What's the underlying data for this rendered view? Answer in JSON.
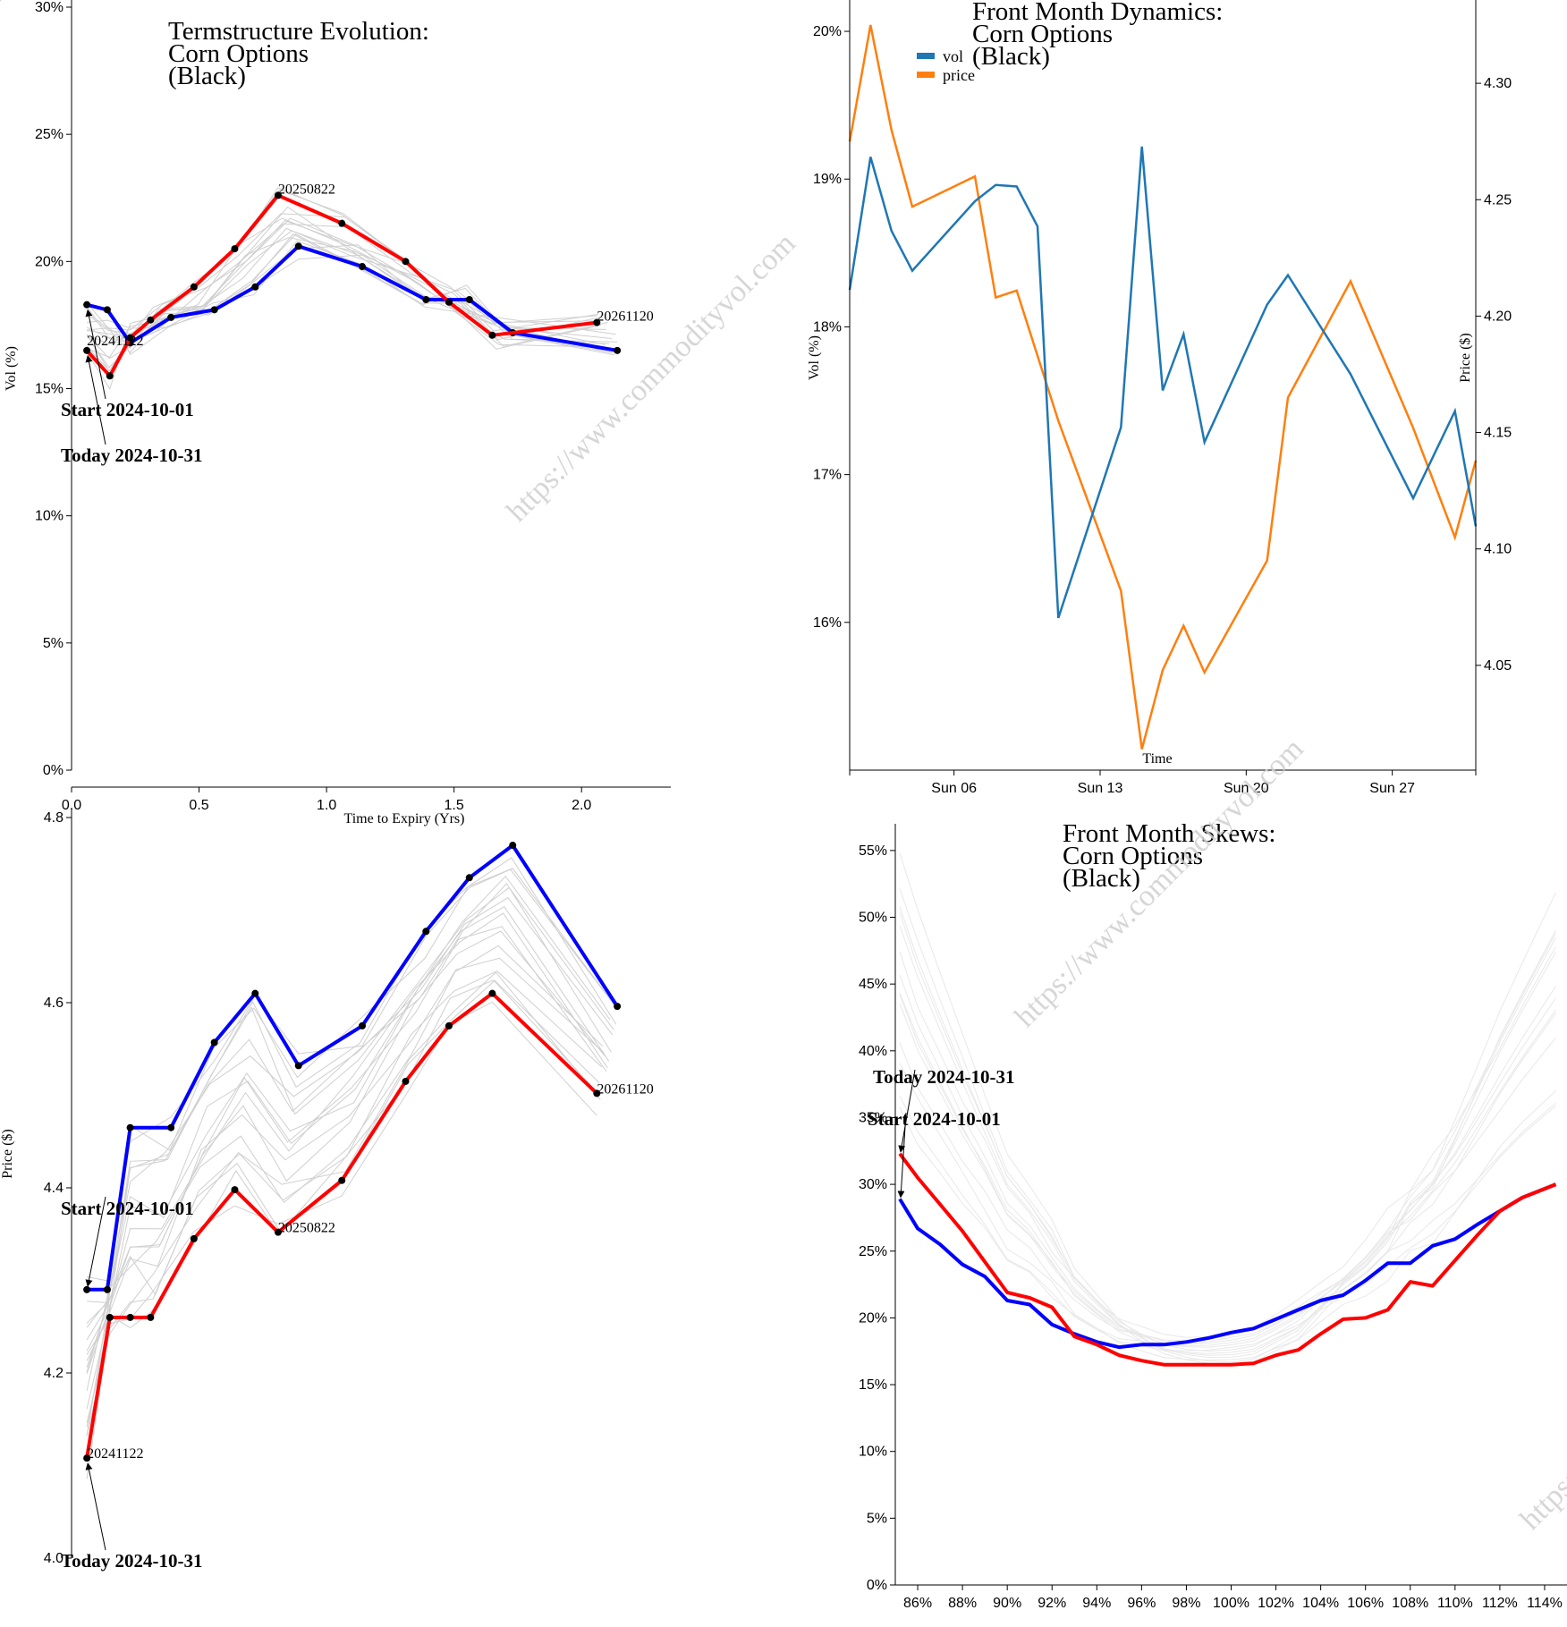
{
  "watermark": {
    "text": "https://www.commodityvol.com"
  },
  "colors": {
    "today": "#ff0000",
    "start": "#0000ff",
    "history": "#cfcfcf",
    "vol": "#1f77b4",
    "price": "#ff7f0e"
  },
  "chart_data": [
    {
      "id": "termstructure",
      "type": "line",
      "title": [
        "Termstructure Evolution:",
        "Corn Options",
        "(Black)"
      ],
      "xlabel": "Time to Expiry (Yrs)",
      "ylabel": "Vol (%)",
      "xlim": [
        0,
        2.35
      ],
      "ylim": [
        0,
        30
      ],
      "xticks": [
        0,
        0.5,
        1.0,
        1.5,
        2.0
      ],
      "xtick_labels": [
        "0.0",
        "0.5",
        "1.0",
        "1.5",
        "2.0"
      ],
      "yticks": [
        0,
        5,
        10,
        15,
        20,
        25,
        30
      ],
      "ytick_labels": [
        "0%",
        "5%",
        "10%",
        "15%",
        "20%",
        "25%",
        "30%"
      ],
      "series": [
        {
          "name": "Today 2024-10-31",
          "x": [
            0.06,
            0.15,
            0.23,
            0.31,
            0.48,
            0.64,
            0.81,
            1.06,
            1.31,
            1.48,
            1.65,
            2.06
          ],
          "values": [
            16.5,
            15.5,
            17.0,
            17.7,
            19.0,
            20.5,
            22.6,
            21.5,
            20.0,
            18.4,
            17.1,
            17.6
          ]
        },
        {
          "name": "Start 2024-10-01",
          "x": [
            0.06,
            0.14,
            0.23,
            0.39,
            0.56,
            0.72,
            0.89,
            1.14,
            1.39,
            1.56,
            1.73,
            2.14
          ],
          "values": [
            18.3,
            18.1,
            16.8,
            17.8,
            18.1,
            19.0,
            20.6,
            19.8,
            18.5,
            18.5,
            17.2,
            16.5
          ]
        }
      ],
      "point_labels": [
        {
          "text": "20241122",
          "x": 0.06,
          "y": 16.5
        },
        {
          "text": "20250822",
          "x": 0.81,
          "y": 22.6
        },
        {
          "text": "20261120",
          "x": 2.06,
          "y": 17.6
        }
      ],
      "annotations": [
        "Start 2024-10-01",
        "Today 2024-10-31"
      ]
    },
    {
      "id": "dynamics",
      "type": "line",
      "title": [
        "Front Month Dynamics:",
        "Corn Options",
        "(Black)"
      ],
      "xlabel": "Time",
      "ylabel": "Vol (%)",
      "ylabel2": "Price ($)",
      "xlim": [
        1,
        31
      ],
      "ylim": [
        15,
        20.2
      ],
      "ylim2": [
        4.005,
        4.335
      ],
      "xticks": [
        6,
        13,
        20,
        27
      ],
      "xtick_labels": [
        "Sun 06",
        "Sun 13",
        "Sun 20",
        "Sun 27"
      ],
      "yticks": [
        16,
        17,
        18,
        19,
        20
      ],
      "ytick_labels": [
        "16%",
        "17%",
        "18%",
        "19%",
        "20%"
      ],
      "yticks2": [
        4.05,
        4.1,
        4.15,
        4.2,
        4.25,
        4.3
      ],
      "ytick_labels2": [
        "4.05",
        "4.10",
        "4.15",
        "4.20",
        "4.25",
        "4.30"
      ],
      "legend": [
        "vol",
        "price"
      ],
      "legend_position": "top-left",
      "series": [
        {
          "name": "vol",
          "axis": "left",
          "x": [
            1,
            2,
            3,
            4,
            7,
            8,
            9,
            10,
            11,
            14,
            15,
            16,
            17,
            18,
            21,
            22,
            25,
            28,
            30,
            31
          ],
          "values": [
            18.25,
            19.15,
            18.65,
            18.38,
            18.85,
            18.96,
            18.95,
            18.68,
            16.03,
            17.32,
            19.22,
            17.57,
            17.95,
            17.22,
            18.15,
            18.35,
            17.68,
            16.84,
            17.43,
            16.65
          ]
        },
        {
          "name": "price",
          "axis": "right",
          "x": [
            1,
            2,
            3,
            4,
            7,
            8,
            9,
            10,
            11,
            14,
            15,
            16,
            17,
            18,
            21,
            22,
            25,
            28,
            30,
            31
          ],
          "values": [
            4.275,
            4.325,
            4.28,
            4.247,
            4.26,
            4.208,
            4.211,
            4.183,
            4.155,
            4.082,
            4.014,
            4.048,
            4.067,
            4.047,
            4.095,
            4.165,
            4.215,
            4.152,
            4.105,
            4.138
          ]
        }
      ]
    },
    {
      "id": "prices",
      "type": "line",
      "title": [],
      "xlabel": "",
      "ylabel": "Price ($)",
      "xlim": [
        0,
        2.35
      ],
      "ylim": [
        4.0,
        4.8
      ],
      "yticks": [
        4.0,
        4.2,
        4.4,
        4.6,
        4.8
      ],
      "ytick_labels": [
        "4.0",
        "4.2",
        "4.4",
        "4.6",
        "4.8"
      ],
      "series": [
        {
          "name": "Today 2024-10-31",
          "x": [
            0.06,
            0.15,
            0.23,
            0.31,
            0.48,
            0.64,
            0.81,
            1.06,
            1.31,
            1.48,
            1.65,
            2.06
          ],
          "values": [
            4.108,
            4.26,
            4.26,
            4.26,
            4.345,
            4.398,
            4.352,
            4.408,
            4.515,
            4.575,
            4.61,
            4.502
          ]
        },
        {
          "name": "Start 2024-10-01",
          "x": [
            0.06,
            0.14,
            0.23,
            0.39,
            0.56,
            0.72,
            0.89,
            1.14,
            1.39,
            1.56,
            1.73,
            2.14
          ],
          "values": [
            4.29,
            4.29,
            4.465,
            4.465,
            4.557,
            4.61,
            4.532,
            4.575,
            4.677,
            4.735,
            4.77,
            4.596
          ]
        }
      ],
      "point_labels": [
        {
          "text": "20241122",
          "x": 0.06,
          "y": 4.108
        },
        {
          "text": "20250822",
          "x": 0.81,
          "y": 4.352
        },
        {
          "text": "20261120",
          "x": 2.06,
          "y": 4.502
        }
      ],
      "annotations": [
        "Start 2024-10-01",
        "Today 2024-10-31"
      ]
    },
    {
      "id": "skews",
      "type": "line",
      "title": [
        "Front Month Skews:",
        "Corn Options",
        "(Black)"
      ],
      "xlabel": "",
      "ylabel": "",
      "xlim": [
        85,
        115
      ],
      "ylim": [
        0,
        57
      ],
      "xticks": [
        86,
        88,
        90,
        92,
        94,
        96,
        98,
        100,
        102,
        104,
        106,
        108,
        110,
        112,
        114
      ],
      "xtick_labels": [
        "86%",
        "88%",
        "90%",
        "92%",
        "94%",
        "96%",
        "98%",
        "100%",
        "102%",
        "104%",
        "106%",
        "108%",
        "110%",
        "112%",
        "114%"
      ],
      "yticks": [
        0,
        5,
        10,
        15,
        20,
        25,
        30,
        35,
        40,
        45,
        50,
        55
      ],
      "ytick_labels": [
        "0%",
        "5%",
        "10%",
        "15%",
        "20%",
        "25%",
        "30%",
        "35%",
        "40%",
        "45%",
        "50%",
        "55%"
      ],
      "series": [
        {
          "name": "Today 2024-10-31",
          "x": [
            85.2,
            86,
            87,
            88,
            89,
            90,
            91,
            92,
            93,
            94,
            95,
            96,
            97,
            98,
            99,
            100,
            101,
            102,
            103,
            104,
            105,
            106,
            107,
            108,
            109,
            110,
            111,
            112,
            113,
            114.5
          ],
          "values": [
            32.3,
            30.5,
            28.5,
            26.5,
            24.2,
            21.9,
            21.5,
            20.8,
            18.6,
            18.0,
            17.2,
            16.8,
            16.5,
            16.5,
            16.5,
            16.5,
            16.6,
            17.2,
            17.6,
            18.8,
            19.9,
            20.0,
            20.6,
            22.7,
            22.4,
            24.3,
            26.2,
            28.0,
            29.0,
            30.0
          ]
        },
        {
          "name": "Start 2024-10-01",
          "x": [
            85.2,
            86,
            87,
            88,
            89,
            90,
            91,
            92,
            93,
            94,
            95,
            96,
            97,
            98,
            99,
            100,
            101,
            102,
            103,
            104,
            105,
            106,
            107,
            108,
            109,
            110,
            111,
            112,
            113,
            114.5
          ],
          "values": [
            28.9,
            26.7,
            25.5,
            24.0,
            23.1,
            21.3,
            21.0,
            19.5,
            18.8,
            18.2,
            17.8,
            18.0,
            18.0,
            18.2,
            18.5,
            18.9,
            19.2,
            19.9,
            20.6,
            21.3,
            21.7,
            22.8,
            24.1,
            24.1,
            25.4,
            25.9,
            27.0,
            28.0,
            29.0,
            30.0
          ]
        }
      ],
      "annotations": [
        "Today 2024-10-31",
        "Start 2024-10-01"
      ]
    }
  ]
}
